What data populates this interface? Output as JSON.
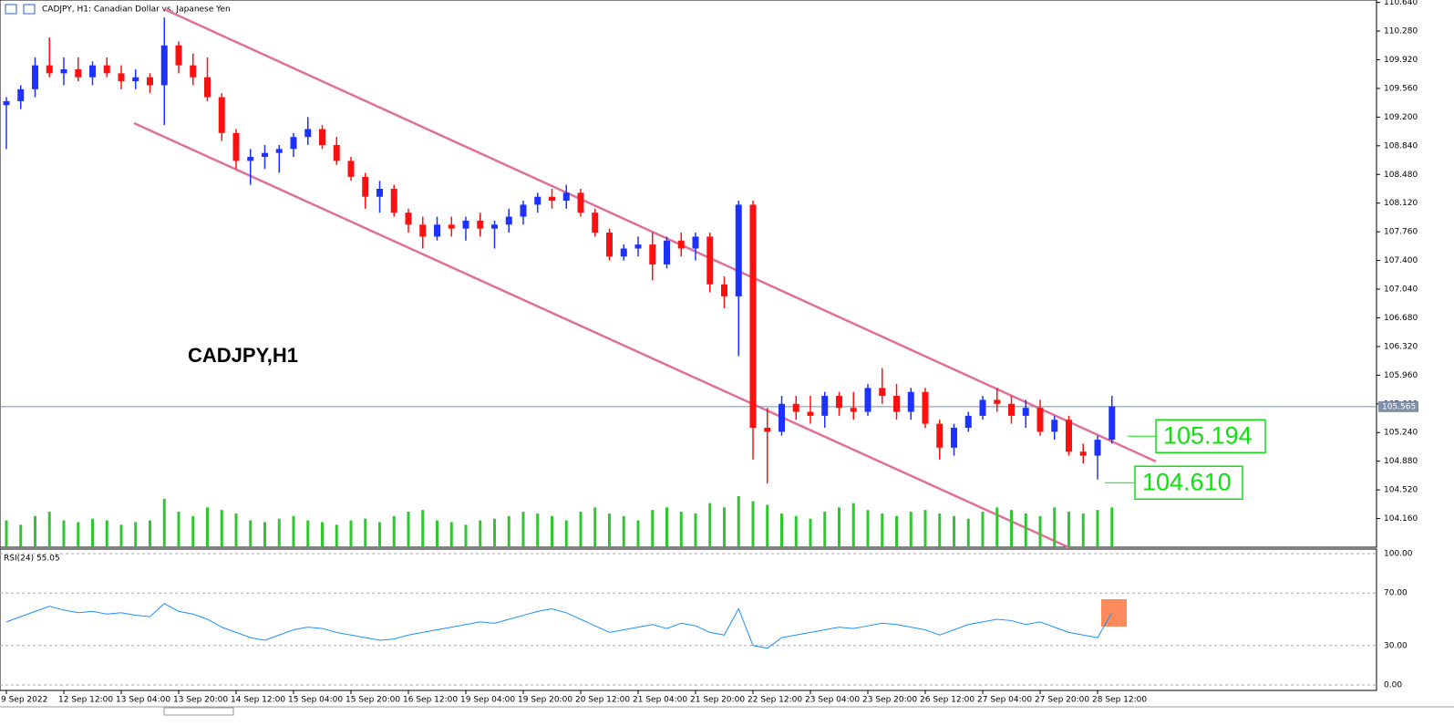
{
  "chart_data": {
    "type": "candlestick",
    "title": "CADJPY, H1:  Canadian Dollar vs. Japanese Yen",
    "label": "CADJPY,H1",
    "categories": [
      "9 Sep 2022",
      null,
      null,
      null,
      "12 Sep 12:00",
      null,
      null,
      null,
      "13 Sep 04:00",
      null,
      null,
      null,
      "13 Sep 20:00",
      null,
      null,
      null,
      "14 Sep 12:00",
      null,
      null,
      null,
      "15 Sep 04:00",
      null,
      null,
      null,
      "15 Sep 20:00",
      null,
      null,
      null,
      "16 Sep 12:00",
      null,
      null,
      null,
      "19 Sep 04:00",
      null,
      null,
      null,
      "19 Sep 20:00",
      null,
      null,
      null,
      "20 Sep 12:00",
      null,
      null,
      null,
      "21 Sep 04:00",
      null,
      null,
      null,
      "21 Sep 20:00",
      null,
      null,
      null,
      "22 Sep 12:00",
      null,
      null,
      null,
      "23 Sep 04:00",
      null,
      null,
      null,
      "23 Sep 20:00",
      null,
      null,
      null,
      "26 Sep 12:00",
      null,
      null,
      null,
      "27 Sep 04:00",
      null,
      null,
      null,
      "27 Sep 20:00",
      null,
      null,
      null,
      "28 Sep 12:00",
      null
    ],
    "open": [
      109.35,
      109.4,
      109.55,
      109.85,
      109.75,
      109.8,
      109.7,
      109.85,
      109.75,
      109.65,
      109.7,
      109.6,
      110.1,
      109.85,
      109.7,
      109.45,
      109.0,
      108.65,
      108.7,
      108.75,
      108.8,
      108.95,
      109.05,
      108.85,
      108.65,
      108.45,
      108.2,
      108.3,
      108.0,
      107.85,
      107.7,
      107.85,
      107.8,
      107.9,
      107.8,
      107.85,
      107.95,
      108.1,
      108.2,
      108.15,
      108.25,
      108.0,
      107.75,
      107.45,
      107.55,
      107.6,
      107.35,
      107.65,
      107.55,
      107.7,
      107.1,
      106.95,
      108.1,
      105.3,
      105.25,
      105.6,
      105.5,
      105.45,
      105.7,
      105.55,
      105.5,
      105.8,
      105.7,
      105.5,
      105.75,
      105.35,
      105.05,
      105.3,
      105.45,
      105.65,
      105.6,
      105.45,
      105.55,
      105.25,
      105.4,
      105.0,
      104.95,
      105.15
    ],
    "high": [
      109.45,
      109.6,
      109.95,
      110.2,
      109.95,
      109.95,
      109.9,
      109.95,
      109.85,
      109.8,
      109.75,
      110.45,
      110.15,
      110.0,
      109.95,
      109.5,
      109.05,
      108.8,
      108.85,
      108.85,
      109.0,
      109.2,
      109.1,
      108.95,
      108.7,
      108.5,
      108.4,
      108.35,
      108.05,
      107.95,
      107.95,
      107.95,
      107.95,
      108.0,
      107.9,
      108.05,
      108.15,
      108.25,
      108.3,
      108.35,
      108.3,
      108.05,
      107.8,
      107.6,
      107.7,
      107.75,
      107.7,
      107.75,
      107.75,
      107.75,
      107.2,
      108.15,
      108.15,
      105.55,
      105.7,
      105.7,
      105.7,
      105.75,
      105.75,
      105.75,
      105.85,
      106.05,
      105.85,
      105.8,
      105.8,
      105.4,
      105.35,
      105.5,
      105.7,
      105.8,
      105.7,
      105.65,
      105.65,
      105.45,
      105.45,
      105.1,
      105.2,
      105.7
    ],
    "low": [
      108.8,
      109.3,
      109.45,
      109.7,
      109.6,
      109.65,
      109.6,
      109.7,
      109.55,
      109.55,
      109.5,
      109.1,
      109.75,
      109.6,
      109.4,
      108.9,
      108.55,
      108.35,
      108.55,
      108.5,
      108.7,
      108.85,
      108.8,
      108.6,
      108.4,
      108.05,
      108.0,
      107.95,
      107.75,
      107.55,
      107.65,
      107.7,
      107.65,
      107.7,
      107.55,
      107.75,
      107.85,
      108.0,
      108.05,
      108.05,
      107.95,
      107.7,
      107.4,
      107.4,
      107.45,
      107.15,
      107.3,
      107.45,
      107.4,
      107.0,
      106.8,
      106.2,
      104.9,
      104.6,
      105.2,
      105.4,
      105.35,
      105.3,
      105.45,
      105.4,
      105.45,
      105.6,
      105.4,
      105.4,
      105.3,
      104.9,
      104.95,
      105.25,
      105.4,
      105.5,
      105.35,
      105.3,
      105.2,
      105.15,
      104.95,
      104.85,
      104.65,
      105.1
    ],
    "close": [
      109.4,
      109.55,
      109.85,
      109.75,
      109.8,
      109.7,
      109.85,
      109.75,
      109.65,
      109.7,
      109.6,
      110.1,
      109.85,
      109.7,
      109.45,
      109.0,
      108.65,
      108.7,
      108.75,
      108.8,
      108.95,
      109.05,
      108.85,
      108.65,
      108.45,
      108.2,
      108.3,
      108.0,
      107.85,
      107.7,
      107.85,
      107.8,
      107.9,
      107.8,
      107.85,
      107.95,
      108.1,
      108.2,
      108.15,
      108.25,
      108.0,
      107.75,
      107.45,
      107.55,
      107.6,
      107.35,
      107.65,
      107.55,
      107.7,
      107.1,
      106.95,
      108.1,
      105.3,
      105.25,
      105.6,
      105.5,
      105.45,
      105.7,
      105.55,
      105.5,
      105.8,
      105.7,
      105.5,
      105.75,
      105.35,
      105.05,
      105.3,
      105.45,
      105.65,
      105.6,
      105.45,
      105.55,
      105.25,
      105.4,
      105.0,
      104.95,
      105.15,
      105.57
    ],
    "volume": [
      30,
      25,
      35,
      40,
      30,
      28,
      32,
      30,
      25,
      28,
      30,
      55,
      40,
      35,
      45,
      42,
      38,
      30,
      28,
      32,
      35,
      30,
      28,
      25,
      30,
      32,
      28,
      35,
      40,
      42,
      30,
      28,
      25,
      30,
      32,
      35,
      40,
      38,
      35,
      30,
      40,
      45,
      38,
      35,
      30,
      42,
      45,
      40,
      38,
      50,
      45,
      58,
      52,
      48,
      38,
      35,
      32,
      40,
      45,
      50,
      42,
      38,
      35,
      40,
      42,
      38,
      35,
      32,
      40,
      45,
      42,
      38,
      35,
      45,
      40,
      38,
      42,
      45
    ],
    "up_color": "#1e32ff",
    "down_color": "#ff1010",
    "volume_color": "#2ec82e",
    "ylim": [
      103.8,
      110.67
    ],
    "yticks": [
      {
        "value": 110.64,
        "label": "110.640"
      },
      {
        "value": 110.28,
        "label": "110.280"
      },
      {
        "value": 109.92,
        "label": "109.920"
      },
      {
        "value": 109.56,
        "label": "109.560"
      },
      {
        "value": 109.2,
        "label": "109.200"
      },
      {
        "value": 108.84,
        "label": "108.840"
      },
      {
        "value": 108.48,
        "label": "108.480"
      },
      {
        "value": 108.12,
        "label": "108.120"
      },
      {
        "value": 107.76,
        "label": "107.760"
      },
      {
        "value": 107.4,
        "label": "107.400"
      },
      {
        "value": 107.04,
        "label": "107.040"
      },
      {
        "value": 106.68,
        "label": "106.680"
      },
      {
        "value": 106.32,
        "label": "106.320"
      },
      {
        "value": 105.96,
        "label": "105.960"
      },
      {
        "value": 105.6,
        "label": "105.600"
      },
      {
        "value": 105.24,
        "label": "105.240"
      },
      {
        "value": 104.88,
        "label": "104.880"
      },
      {
        "value": 104.52,
        "label": "104.520"
      },
      {
        "value": 104.16,
        "label": "104.160"
      }
    ],
    "current_price": 105.565,
    "levels": [
      105.194,
      {
        "value": 104.61,
        "label": "104.610"
      }
    ],
    "rsi": {
      "label": "RSI(24) 55.05",
      "color": "#1e90ff",
      "values": [
        48,
        52,
        56,
        60,
        57,
        55,
        56,
        54,
        55,
        53,
        52,
        62,
        56,
        54,
        50,
        44,
        40,
        36,
        34,
        38,
        42,
        44,
        43,
        40,
        38,
        36,
        34,
        35,
        38,
        40,
        42,
        44,
        46,
        48,
        47,
        50,
        53,
        56,
        58,
        55,
        50,
        45,
        40,
        42,
        44,
        46,
        43,
        47,
        45,
        40,
        38,
        58,
        30,
        28,
        36,
        38,
        40,
        42,
        44,
        43,
        45,
        47,
        46,
        44,
        42,
        38,
        42,
        46,
        48,
        50,
        49,
        46,
        48,
        44,
        40,
        38,
        36,
        55.05
      ],
      "ylim": [
        -4.2,
        103.5
      ],
      "yticks": [
        {
          "value": 100,
          "label": "100.00"
        },
        {
          "value": 70,
          "label": "70.00"
        },
        {
          "value": 30,
          "label": "30.00"
        },
        {
          "value": 0,
          "label": "0.00"
        }
      ]
    }
  }
}
